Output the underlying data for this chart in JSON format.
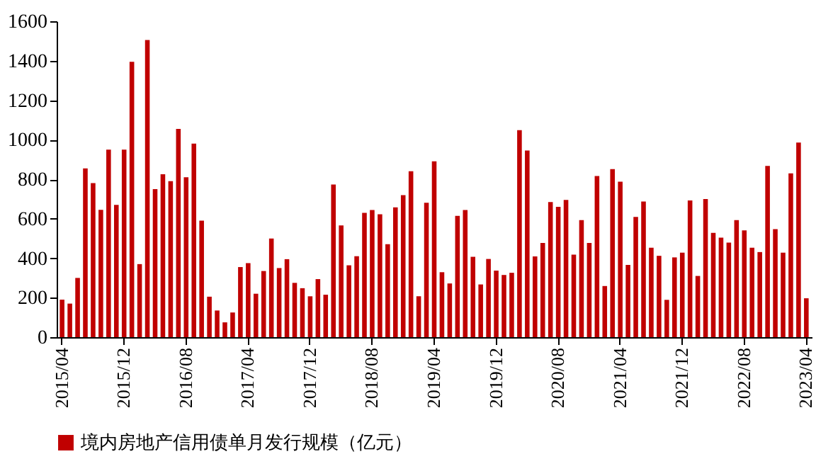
{
  "chart_data": {
    "type": "bar",
    "categories": [
      "2015/04",
      null,
      null,
      null,
      null,
      null,
      null,
      null,
      "2015/12",
      null,
      null,
      null,
      null,
      null,
      null,
      null,
      "2016/08",
      null,
      null,
      null,
      null,
      null,
      null,
      null,
      "2017/04",
      null,
      null,
      null,
      null,
      null,
      null,
      null,
      "2017/12",
      null,
      null,
      null,
      null,
      null,
      null,
      null,
      "2018/08",
      null,
      null,
      null,
      null,
      null,
      null,
      null,
      "2019/04",
      null,
      null,
      null,
      null,
      null,
      null,
      null,
      "2019/12",
      null,
      null,
      null,
      null,
      null,
      null,
      null,
      "2020/08",
      null,
      null,
      null,
      null,
      null,
      null,
      null,
      "2021/04",
      null,
      null,
      null,
      null,
      null,
      null,
      null,
      "2021/12",
      null,
      null,
      null,
      null,
      null,
      null,
      null,
      "2022/08",
      null,
      null,
      null,
      null,
      null,
      null,
      null,
      "2023/04"
    ],
    "series": [
      {
        "name": "境内房地产信用债单月发行规模（亿元）",
        "color": "#c00000",
        "values": [
          190,
          170,
          300,
          855,
          780,
          645,
          950,
          670,
          950,
          1395,
          370,
          1505,
          750,
          825,
          790,
          1055,
          810,
          980,
          590,
          205,
          135,
          75,
          125,
          355,
          375,
          220,
          335,
          500,
          350,
          395,
          275,
          248,
          207,
          294,
          215,
          773,
          566,
          364,
          410,
          630,
          644,
          622,
          471,
          657,
          719,
          840,
          207,
          681,
          891,
          329,
          272,
          614,
          644,
          407,
          267,
          396,
          337,
          315,
          326,
          1048,
          945,
          409,
          477,
          684,
          660,
          695,
          418,
          593,
          477,
          816,
          259,
          851,
          787,
          366,
          609,
          687,
          453,
          412,
          189,
          404,
          428,
          692,
          310,
          700,
          528,
          504,
          479,
          593,
          541,
          453,
          431,
          867,
          547,
          428,
          830,
          986,
          197
        ]
      }
    ],
    "ylim": [
      0,
      1600
    ],
    "yticks": [
      0,
      200,
      400,
      600,
      800,
      1000,
      1200,
      1400,
      1600
    ],
    "legend": "bottom",
    "grid": false
  }
}
